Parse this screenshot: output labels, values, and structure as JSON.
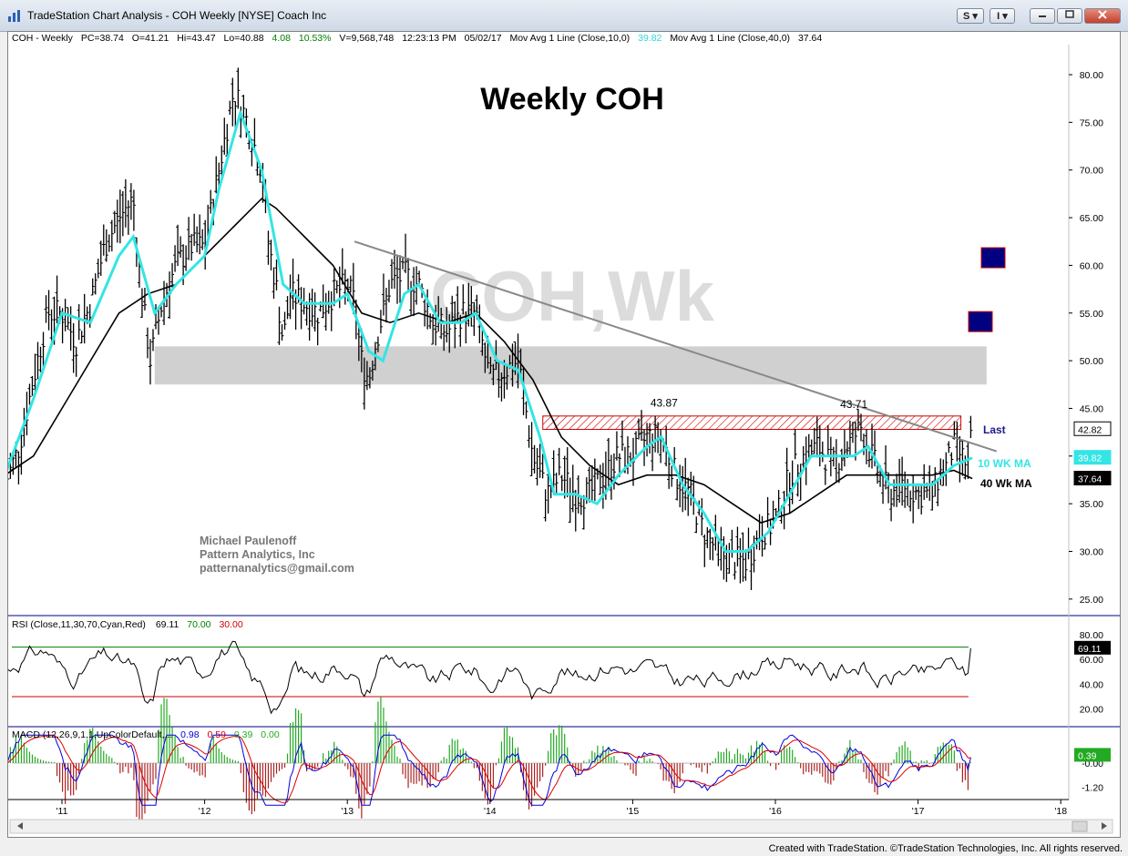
{
  "window": {
    "title": "TradeStation Chart Analysis - COH Weekly [NYSE] Coach Inc",
    "btn_s": "S",
    "btn_i": "I"
  },
  "status_line": {
    "symbol": "COH - Weekly",
    "pc": "PC=38.74",
    "open": "O=41.21",
    "high": "Hi=43.47",
    "low": "Lo=40.88",
    "change": "4.08",
    "pct": "10.53%",
    "volume": "V=9,568,748",
    "time": "12:23:13 PM",
    "date": "05/02/17",
    "ma10_label": "Mov Avg 1 Line (Close,10,0)",
    "ma10_value": "39.82",
    "ma40_label": "Mov Avg 1 Line (Close,40,0)",
    "ma40_value": "37.64"
  },
  "chart_title": "Weekly COH",
  "watermark": "COH,Wk",
  "author": {
    "name": "Michael Paulenoff",
    "company": "Pattern Analytics, Inc",
    "email": "patternanalytics@gmail.com"
  },
  "annotations": {
    "peak1": "43.87",
    "peak2": "43.71",
    "last": "Last",
    "ma10": "10 WK MA",
    "ma40": "40 Wk MA"
  },
  "price_tags": {
    "last": "42.82",
    "ma10": "39.82",
    "ma40": "37.64"
  },
  "rsi": {
    "label": "RSI (Close,11,30,70,Cyan,Red)",
    "value": "69.11",
    "ob": "70.00",
    "os": "30.00",
    "ticks": [
      "80.00",
      "60.00",
      "40.00",
      "20.00"
    ]
  },
  "macd": {
    "label": "MACD (12,26,9,1,1,UpColorDefault,...",
    "v1": "0.98",
    "v2": "0.59",
    "v3": "0.39",
    "v4": "0.00",
    "tag": "0.39",
    "ticks": [
      "-0.00",
      "-1.20"
    ]
  },
  "colors": {
    "ma10": "#33e5e5",
    "ma40": "#000000",
    "rsi_ob": "#008000",
    "rsi_os": "#cc0000",
    "macd_up": "#22aa22",
    "macd_down": "#aa2222",
    "macd_line": "#0000dd",
    "macd_signal": "#dd0000",
    "marker": "#000080",
    "resistance": "#cc0000"
  },
  "status_credit": "Created with TradeStation. ©TradeStation Technologies, Inc. All rights reserved.",
  "chart_data": {
    "type": "bar",
    "title": "Weekly COH",
    "x_ticks": [
      "'11",
      "'12",
      "'13",
      "'14",
      "'15",
      "'16",
      "'17",
      "'18"
    ],
    "y_ticks": [
      "80.00",
      "75.00",
      "70.00",
      "65.00",
      "60.00",
      "55.00",
      "50.00",
      "45.00",
      "40.00",
      "35.00",
      "30.00",
      "25.00"
    ],
    "ylim": [
      22,
      82
    ],
    "xlim": [
      2010.55,
      2018.15
    ],
    "series_close": [
      [
        2010.6,
        37
      ],
      [
        2010.7,
        41
      ],
      [
        2010.8,
        48
      ],
      [
        2010.9,
        55
      ],
      [
        2011.0,
        55
      ],
      [
        2011.1,
        52
      ],
      [
        2011.2,
        56
      ],
      [
        2011.3,
        62
      ],
      [
        2011.4,
        65
      ],
      [
        2011.5,
        67
      ],
      [
        2011.55,
        58
      ],
      [
        2011.62,
        50
      ],
      [
        2011.7,
        56
      ],
      [
        2011.8,
        60
      ],
      [
        2011.9,
        62
      ],
      [
        2012.0,
        62
      ],
      [
        2012.1,
        70
      ],
      [
        2012.2,
        78
      ],
      [
        2012.25,
        77
      ],
      [
        2012.3,
        75
      ],
      [
        2012.4,
        70
      ],
      [
        2012.45,
        62
      ],
      [
        2012.5,
        58
      ],
      [
        2012.55,
        52
      ],
      [
        2012.6,
        57
      ],
      [
        2012.7,
        56
      ],
      [
        2012.8,
        55
      ],
      [
        2012.9,
        57
      ],
      [
        2013.0,
        58
      ],
      [
        2013.05,
        56
      ],
      [
        2013.1,
        50
      ],
      [
        2013.15,
        48
      ],
      [
        2013.2,
        52
      ],
      [
        2013.3,
        58
      ],
      [
        2013.4,
        59
      ],
      [
        2013.5,
        58
      ],
      [
        2013.6,
        54
      ],
      [
        2013.7,
        53
      ],
      [
        2013.8,
        55
      ],
      [
        2013.9,
        55
      ],
      [
        2014.0,
        48
      ],
      [
        2014.1,
        49
      ],
      [
        2014.2,
        50
      ],
      [
        2014.3,
        40
      ],
      [
        2014.4,
        36
      ],
      [
        2014.5,
        38
      ],
      [
        2014.6,
        36
      ],
      [
        2014.7,
        36
      ],
      [
        2014.8,
        38
      ],
      [
        2014.9,
        40
      ],
      [
        2015.0,
        40
      ],
      [
        2015.1,
        42
      ],
      [
        2015.2,
        42
      ],
      [
        2015.3,
        38
      ],
      [
        2015.4,
        36
      ],
      [
        2015.5,
        32
      ],
      [
        2015.6,
        30
      ],
      [
        2015.7,
        29
      ],
      [
        2015.8,
        29
      ],
      [
        2015.9,
        32
      ],
      [
        2016.0,
        33
      ],
      [
        2016.1,
        38
      ],
      [
        2016.2,
        40
      ],
      [
        2016.3,
        41
      ],
      [
        2016.4,
        39
      ],
      [
        2016.5,
        41
      ],
      [
        2016.6,
        43
      ],
      [
        2016.7,
        39
      ],
      [
        2016.8,
        36
      ],
      [
        2016.9,
        37
      ],
      [
        2017.0,
        36
      ],
      [
        2017.1,
        36
      ],
      [
        2017.15,
        38
      ],
      [
        2017.2,
        39
      ],
      [
        2017.25,
        41
      ],
      [
        2017.3,
        40
      ],
      [
        2017.35,
        39
      ],
      [
        2017.38,
        43
      ]
    ],
    "series": [
      {
        "name": "10 WK MA",
        "values": [
          [
            2010.6,
            38
          ],
          [
            2010.8,
            46
          ],
          [
            2011.0,
            55
          ],
          [
            2011.2,
            54
          ],
          [
            2011.4,
            61
          ],
          [
            2011.5,
            63
          ],
          [
            2011.65,
            55
          ],
          [
            2011.8,
            58
          ],
          [
            2012.0,
            61
          ],
          [
            2012.1,
            68
          ],
          [
            2012.25,
            76
          ],
          [
            2012.4,
            70
          ],
          [
            2012.55,
            58
          ],
          [
            2012.7,
            56
          ],
          [
            2012.9,
            56
          ],
          [
            2013.0,
            57
          ],
          [
            2013.15,
            51
          ],
          [
            2013.25,
            50
          ],
          [
            2013.4,
            57
          ],
          [
            2013.5,
            58
          ],
          [
            2013.65,
            54
          ],
          [
            2013.8,
            54
          ],
          [
            2013.9,
            55
          ],
          [
            2014.05,
            50
          ],
          [
            2014.2,
            49
          ],
          [
            2014.35,
            42
          ],
          [
            2014.45,
            36
          ],
          [
            2014.6,
            36
          ],
          [
            2014.75,
            35
          ],
          [
            2014.9,
            38
          ],
          [
            2015.1,
            41
          ],
          [
            2015.2,
            42
          ],
          [
            2015.35,
            37
          ],
          [
            2015.5,
            34
          ],
          [
            2015.65,
            30
          ],
          [
            2015.8,
            30
          ],
          [
            2015.95,
            32
          ],
          [
            2016.1,
            36
          ],
          [
            2016.25,
            40
          ],
          [
            2016.4,
            40
          ],
          [
            2016.55,
            40
          ],
          [
            2016.65,
            41
          ],
          [
            2016.8,
            37
          ],
          [
            2016.95,
            37
          ],
          [
            2017.1,
            37
          ],
          [
            2017.25,
            39
          ],
          [
            2017.38,
            39.82
          ]
        ]
      },
      {
        "name": "40 Wk MA",
        "values": [
          [
            2010.6,
            38
          ],
          [
            2010.8,
            40
          ],
          [
            2011.0,
            45
          ],
          [
            2011.2,
            50
          ],
          [
            2011.4,
            55
          ],
          [
            2011.6,
            57
          ],
          [
            2011.8,
            58
          ],
          [
            2012.0,
            61
          ],
          [
            2012.2,
            64
          ],
          [
            2012.4,
            67
          ],
          [
            2012.5,
            66
          ],
          [
            2012.7,
            63
          ],
          [
            2012.9,
            60
          ],
          [
            2013.1,
            55
          ],
          [
            2013.3,
            54
          ],
          [
            2013.5,
            55
          ],
          [
            2013.7,
            54
          ],
          [
            2013.9,
            55
          ],
          [
            2014.1,
            52
          ],
          [
            2014.3,
            48
          ],
          [
            2014.5,
            42
          ],
          [
            2014.7,
            39
          ],
          [
            2014.9,
            37
          ],
          [
            2015.1,
            38
          ],
          [
            2015.3,
            38
          ],
          [
            2015.5,
            37
          ],
          [
            2015.7,
            35
          ],
          [
            2015.9,
            33
          ],
          [
            2016.1,
            34
          ],
          [
            2016.3,
            36
          ],
          [
            2016.5,
            38
          ],
          [
            2016.7,
            38
          ],
          [
            2016.9,
            38
          ],
          [
            2017.1,
            38
          ],
          [
            2017.25,
            38.5
          ],
          [
            2017.38,
            37.64
          ]
        ]
      }
    ],
    "resistance_zone": [
      42.8,
      44.2
    ],
    "support_zone": [
      47.5,
      51.5
    ],
    "trendline": [
      [
        2013.05,
        62.5
      ],
      [
        2017.55,
        40.5
      ]
    ],
    "labels": [
      {
        "text": "43.87",
        "x": 2015.22,
        "y": 43.87
      },
      {
        "text": "43.71",
        "x": 2016.55,
        "y": 43.71
      }
    ],
    "targets": [
      60.8,
      54.1
    ]
  }
}
